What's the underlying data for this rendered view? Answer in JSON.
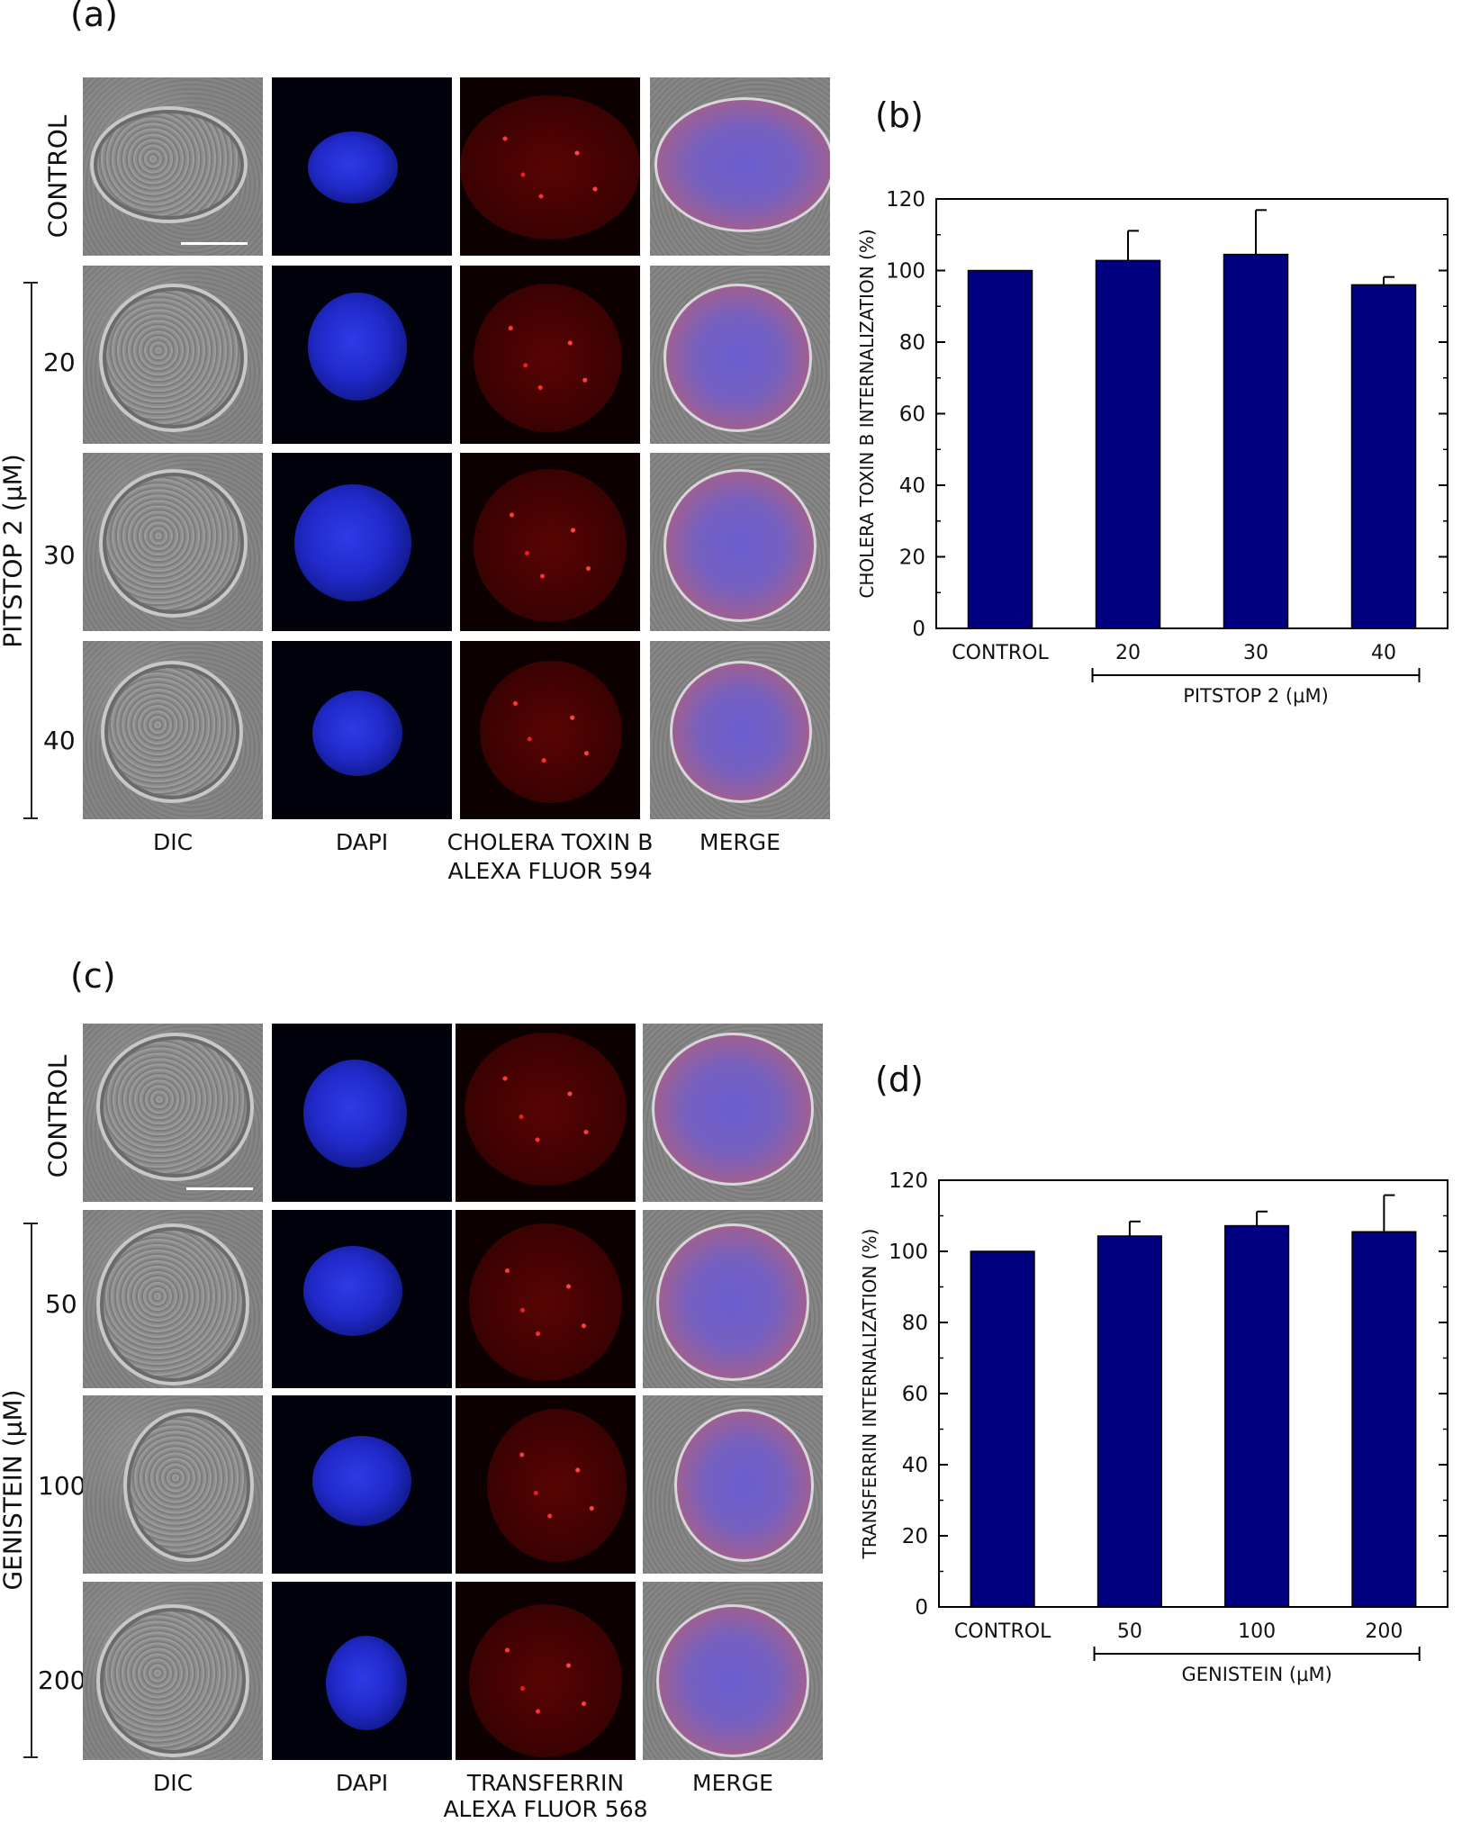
{
  "panel_a": {
    "letter": "(a)",
    "row_labels": [
      "CONTROL",
      "20",
      "30",
      "40"
    ],
    "group_label": "PITSTOP 2 (μM)",
    "column_labels": [
      "DIC",
      "DAPI",
      "CHOLERA TOXIN B",
      "MERGE"
    ],
    "column_sublabel": "ALEXA FLUOR 594"
  },
  "panel_c": {
    "letter": "(c)",
    "row_labels": [
      "CONTROL",
      "50",
      "100",
      "200"
    ],
    "group_label": "GENISTEIN (μM)",
    "column_labels": [
      "DIC",
      "DAPI",
      "TRANSFERRIN",
      "MERGE"
    ],
    "column_sublabel": "ALEXA FLUOR 568"
  },
  "panel_b": {
    "letter": "(b)"
  },
  "panel_d": {
    "letter": "(d)"
  },
  "colors": {
    "bar": "#000080",
    "axis": "#000000"
  },
  "chart_data": [
    {
      "type": "bar",
      "categories": [
        "CONTROL",
        "20",
        "30",
        "40"
      ],
      "values": [
        100,
        102.8,
        104.5,
        96
      ],
      "errors": [
        0,
        8.3,
        12.4,
        2.2
      ],
      "ylabel": "CHOLERA TOXIN B INTERNALIZATION (%)",
      "group_label": "PITSTOP 2 (μM)",
      "yticks": [
        0,
        20,
        40,
        60,
        80,
        100,
        120
      ],
      "ylim": [
        0,
        120
      ]
    },
    {
      "type": "bar",
      "categories": [
        "CONTROL",
        "50",
        "100",
        "200"
      ],
      "values": [
        100,
        104.3,
        107.2,
        105.5
      ],
      "errors": [
        0,
        4.1,
        4.0,
        10.3
      ],
      "ylabel": "TRANSFERRIN INTERNALIZATION (%)",
      "group_label": "GENISTEIN (μM)",
      "yticks": [
        0,
        20,
        40,
        60,
        80,
        100,
        120
      ],
      "ylim": [
        0,
        120
      ]
    }
  ]
}
